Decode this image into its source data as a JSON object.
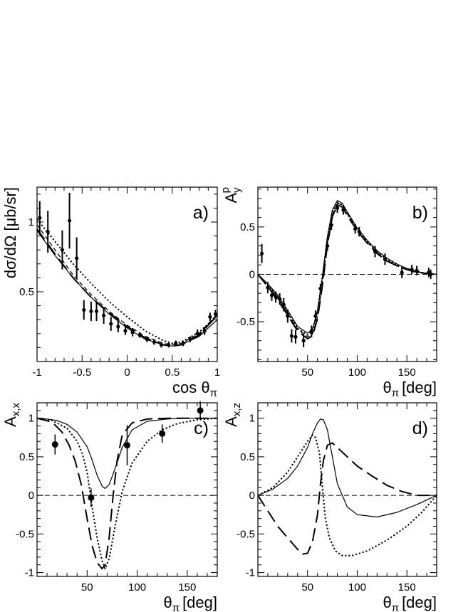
{
  "chart_data": [
    {
      "panel": "a)",
      "type": "line",
      "xlabel": "cos θ",
      "xlabel_sub": "π",
      "ylabel": "dσ/dΩ [μb/sr]",
      "xlim": [
        -1,
        1
      ],
      "ylim": [
        0.0,
        1.25
      ],
      "xticks": [
        -1,
        -0.5,
        0,
        0.5,
        1
      ],
      "xtick_labels": [
        "-1",
        "-0.5",
        "0",
        "0.5",
        "1"
      ],
      "yticks": [
        0.5,
        1
      ],
      "ytick_labels": [
        "0.5",
        "1"
      ],
      "zero_line": false,
      "points": [
        {
          "x": -0.97,
          "y": 1.03,
          "err": 0.12
        },
        {
          "x": -0.88,
          "y": 0.93,
          "err": 0.15
        },
        {
          "x": -0.72,
          "y": 0.8,
          "err": 0.14
        },
        {
          "x": -0.64,
          "y": 1.01,
          "err": 0.2
        },
        {
          "x": -0.56,
          "y": 0.74,
          "err": 0.15
        },
        {
          "x": -0.48,
          "y": 0.37,
          "err": 0.07
        },
        {
          "x": -0.4,
          "y": 0.36,
          "err": 0.07
        },
        {
          "x": -0.34,
          "y": 0.36,
          "err": 0.07
        },
        {
          "x": -0.26,
          "y": 0.33,
          "err": 0.06
        },
        {
          "x": -0.18,
          "y": 0.27,
          "err": 0.05
        },
        {
          "x": -0.1,
          "y": 0.25,
          "err": 0.04
        },
        {
          "x": -0.02,
          "y": 0.22,
          "err": 0.03
        },
        {
          "x": 0.06,
          "y": 0.21,
          "err": 0.03
        },
        {
          "x": 0.14,
          "y": 0.19,
          "err": 0.02
        },
        {
          "x": 0.22,
          "y": 0.16,
          "err": 0.02
        },
        {
          "x": 0.3,
          "y": 0.14,
          "err": 0.02
        },
        {
          "x": 0.38,
          "y": 0.12,
          "err": 0.02
        },
        {
          "x": 0.46,
          "y": 0.12,
          "err": 0.02
        },
        {
          "x": 0.54,
          "y": 0.13,
          "err": 0.02
        },
        {
          "x": 0.62,
          "y": 0.13,
          "err": 0.02
        },
        {
          "x": 0.7,
          "y": 0.16,
          "err": 0.02
        },
        {
          "x": 0.78,
          "y": 0.2,
          "err": 0.03
        },
        {
          "x": 0.86,
          "y": 0.22,
          "err": 0.03
        },
        {
          "x": 0.92,
          "y": 0.32,
          "err": 0.03
        },
        {
          "x": 0.98,
          "y": 0.34,
          "err": 0.03
        }
      ],
      "series": [
        {
          "style": "solid",
          "x": [
            -1,
            -0.8,
            -0.6,
            -0.4,
            -0.2,
            0,
            0.2,
            0.4,
            0.5,
            0.6,
            0.8,
            1
          ],
          "y": [
            0.94,
            0.76,
            0.6,
            0.46,
            0.34,
            0.24,
            0.16,
            0.12,
            0.11,
            0.12,
            0.18,
            0.3
          ]
        },
        {
          "style": "dashed",
          "x": [
            -1,
            -0.8,
            -0.6,
            -0.4,
            -0.2,
            0,
            0.2,
            0.4,
            0.5,
            0.6,
            0.8,
            1
          ],
          "y": [
            0.98,
            0.8,
            0.62,
            0.48,
            0.36,
            0.26,
            0.18,
            0.13,
            0.12,
            0.13,
            0.2,
            0.34
          ]
        },
        {
          "style": "dotted",
          "x": [
            -1,
            -0.8,
            -0.6,
            -0.4,
            -0.2,
            0,
            0.2,
            0.4,
            0.5,
            0.6,
            0.8,
            1
          ],
          "y": [
            1.02,
            0.86,
            0.7,
            0.56,
            0.43,
            0.32,
            0.22,
            0.15,
            0.13,
            0.14,
            0.21,
            0.33
          ]
        },
        {
          "style": "longdash",
          "x": [
            -1,
            -0.8,
            -0.6,
            -0.4,
            -0.2,
            0,
            0.2,
            0.4,
            0.5,
            0.6,
            0.8,
            1
          ],
          "y": [
            0.95,
            0.77,
            0.6,
            0.46,
            0.35,
            0.25,
            0.17,
            0.12,
            0.11,
            0.12,
            0.19,
            0.33
          ]
        }
      ]
    },
    {
      "panel": "b)",
      "type": "line",
      "xlabel": "θ",
      "xlabel_sub": "π",
      "xlabel_unit": "[deg]",
      "ylabel": "A",
      "ylabel_sub": "y",
      "ylabel_sup": "p",
      "xlim": [
        0,
        180
      ],
      "ylim": [
        -0.92,
        0.92
      ],
      "xticks": [
        50,
        100,
        150
      ],
      "xtick_labels": [
        "50",
        "100",
        "150"
      ],
      "yticks": [
        -0.5,
        0,
        0.5
      ],
      "ytick_labels": [
        "-0.5",
        "0",
        "0.5"
      ],
      "zero_line": true,
      "points": [
        {
          "x": 4,
          "y": 0.22,
          "err": 0.1
        },
        {
          "x": 10,
          "y": -0.14,
          "err": 0.06
        },
        {
          "x": 14,
          "y": -0.22,
          "err": 0.06
        },
        {
          "x": 18,
          "y": -0.24,
          "err": 0.06
        },
        {
          "x": 22,
          "y": -0.26,
          "err": 0.06
        },
        {
          "x": 26,
          "y": -0.32,
          "err": 0.07
        },
        {
          "x": 30,
          "y": -0.44,
          "err": 0.07
        },
        {
          "x": 34,
          "y": -0.65,
          "err": 0.07
        },
        {
          "x": 38,
          "y": -0.66,
          "err": 0.07
        },
        {
          "x": 46,
          "y": -0.7,
          "err": 0.07
        },
        {
          "x": 54,
          "y": -0.6,
          "err": 0.06
        },
        {
          "x": 58,
          "y": -0.44,
          "err": 0.06
        },
        {
          "x": 63,
          "y": -0.15,
          "err": 0.05
        },
        {
          "x": 70,
          "y": 0.3,
          "err": 0.05
        },
        {
          "x": 74,
          "y": 0.52,
          "err": 0.05
        },
        {
          "x": 80,
          "y": 0.7,
          "err": 0.05
        },
        {
          "x": 86,
          "y": 0.68,
          "err": 0.05
        },
        {
          "x": 98,
          "y": 0.48,
          "err": 0.05
        },
        {
          "x": 102,
          "y": 0.45,
          "err": 0.05
        },
        {
          "x": 118,
          "y": 0.24,
          "err": 0.06
        },
        {
          "x": 128,
          "y": 0.16,
          "err": 0.06
        },
        {
          "x": 145,
          "y": 0.02,
          "err": 0.06
        },
        {
          "x": 155,
          "y": 0.05,
          "err": 0.05
        },
        {
          "x": 160,
          "y": 0.04,
          "err": 0.05
        },
        {
          "x": 172,
          "y": 0.02,
          "err": 0.05
        },
        {
          "x": 174,
          "y": 0.0,
          "err": 0.05
        }
      ],
      "series": [
        {
          "style": "solid",
          "x": [
            0,
            10,
            20,
            30,
            40,
            50,
            55,
            60,
            65,
            70,
            75,
            80,
            85,
            90,
            100,
            110,
            120,
            130,
            140,
            150,
            160,
            170,
            180
          ],
          "y": [
            0,
            -0.1,
            -0.22,
            -0.38,
            -0.55,
            -0.62,
            -0.58,
            -0.38,
            -0.02,
            0.4,
            0.68,
            0.78,
            0.75,
            0.66,
            0.49,
            0.36,
            0.25,
            0.17,
            0.11,
            0.06,
            0.03,
            0.01,
            0
          ]
        },
        {
          "style": "dashed",
          "x": [
            0,
            10,
            20,
            30,
            40,
            50,
            55,
            60,
            65,
            70,
            75,
            80,
            85,
            90,
            100,
            110,
            120,
            130,
            140,
            150,
            160,
            170,
            180
          ],
          "y": [
            0,
            -0.12,
            -0.25,
            -0.41,
            -0.58,
            -0.66,
            -0.63,
            -0.45,
            -0.1,
            0.33,
            0.63,
            0.75,
            0.73,
            0.64,
            0.47,
            0.34,
            0.23,
            0.15,
            0.09,
            0.05,
            0.02,
            0.01,
            0
          ]
        },
        {
          "style": "dotted",
          "x": [
            0,
            10,
            20,
            30,
            40,
            50,
            55,
            60,
            65,
            70,
            75,
            80,
            85,
            90,
            100,
            110,
            120,
            130,
            140,
            150,
            160,
            170,
            180
          ],
          "y": [
            0,
            -0.11,
            -0.24,
            -0.4,
            -0.57,
            -0.64,
            -0.6,
            -0.4,
            -0.04,
            0.38,
            0.66,
            0.76,
            0.73,
            0.64,
            0.48,
            0.35,
            0.24,
            0.16,
            0.1,
            0.06,
            0.03,
            0.01,
            0
          ]
        },
        {
          "style": "longdash",
          "x": [
            0,
            10,
            20,
            30,
            40,
            50,
            55,
            60,
            65,
            70,
            75,
            80,
            85,
            90,
            100,
            110,
            120,
            130,
            140,
            150,
            160,
            170,
            180
          ],
          "y": [
            0,
            -0.13,
            -0.27,
            -0.43,
            -0.6,
            -0.68,
            -0.65,
            -0.47,
            -0.12,
            0.31,
            0.61,
            0.73,
            0.71,
            0.62,
            0.46,
            0.33,
            0.22,
            0.14,
            0.09,
            0.05,
            0.02,
            0.01,
            0
          ]
        }
      ]
    },
    {
      "panel": "c)",
      "type": "line",
      "xlabel": "θ",
      "xlabel_sub": "π",
      "xlabel_unit": "[deg]",
      "ylabel": "A",
      "ylabel_sub": "x,x",
      "xlim": [
        0,
        180
      ],
      "ylim": [
        -1.05,
        1.2
      ],
      "xticks": [
        50,
        100,
        150
      ],
      "xtick_labels": [
        "50",
        "100",
        "150"
      ],
      "yticks": [
        -1,
        -0.5,
        0,
        0.5,
        1
      ],
      "ytick_labels": [
        "-1",
        "-0.5",
        "0",
        "0.5",
        "1"
      ],
      "zero_line": true,
      "points": [
        {
          "x": 18,
          "y": 0.66,
          "err": 0.13
        },
        {
          "x": 54,
          "y": -0.03,
          "err": 0.12
        },
        {
          "x": 90,
          "y": 0.65,
          "err": 0.26
        },
        {
          "x": 125,
          "y": 0.8,
          "err": 0.12
        },
        {
          "x": 163,
          "y": 1.1,
          "err": 0.12
        }
      ],
      "series": [
        {
          "style": "solid",
          "x": [
            0,
            10,
            20,
            30,
            40,
            50,
            55,
            60,
            65,
            68,
            72,
            78,
            85,
            95,
            110,
            130,
            150,
            180
          ],
          "y": [
            1.0,
            0.99,
            0.97,
            0.92,
            0.82,
            0.63,
            0.46,
            0.26,
            0.12,
            0.09,
            0.14,
            0.35,
            0.62,
            0.85,
            0.96,
            0.99,
            1.0,
            1.0
          ]
        },
        {
          "style": "dotted",
          "x": [
            0,
            15,
            30,
            40,
            45,
            50,
            55,
            60,
            65,
            68,
            72,
            78,
            85,
            95,
            110,
            125,
            140,
            160,
            180
          ],
          "y": [
            1.0,
            0.97,
            0.87,
            0.7,
            0.55,
            0.3,
            -0.15,
            -0.55,
            -0.85,
            -0.95,
            -0.82,
            -0.4,
            0.05,
            0.42,
            0.7,
            0.85,
            0.93,
            0.98,
            1.0
          ]
        },
        {
          "style": "longdash",
          "x": [
            0,
            15,
            25,
            32,
            38,
            44,
            50,
            55,
            60,
            65,
            68,
            72,
            76,
            80,
            85,
            95,
            110,
            130,
            150,
            180
          ],
          "y": [
            1.0,
            0.95,
            0.82,
            0.65,
            0.45,
            0.15,
            -0.3,
            -0.65,
            -0.87,
            -0.95,
            -0.9,
            -0.55,
            0.0,
            0.45,
            0.78,
            0.94,
            0.99,
            1.0,
            1.0,
            1.0
          ]
        }
      ]
    },
    {
      "panel": "d)",
      "type": "line",
      "xlabel": "θ",
      "xlabel_sub": "π",
      "xlabel_unit": "[deg]",
      "ylabel": "A",
      "ylabel_sub": "x,z",
      "xlim": [
        0,
        180
      ],
      "ylim": [
        -1.05,
        1.2
      ],
      "xticks": [
        50,
        100,
        150
      ],
      "xtick_labels": [
        "50",
        "100",
        "150"
      ],
      "yticks": [
        -1,
        -0.5,
        0,
        0.5,
        1
      ],
      "ytick_labels": [
        "-1",
        "-0.5",
        "0",
        "0.5",
        "1"
      ],
      "zero_line": true,
      "points": [],
      "series": [
        {
          "style": "solid",
          "x": [
            0,
            15,
            30,
            40,
            50,
            55,
            60,
            63,
            66,
            70,
            75,
            80,
            90,
            100,
            120,
            140,
            160,
            180
          ],
          "y": [
            0,
            0.08,
            0.22,
            0.38,
            0.62,
            0.8,
            0.94,
            0.99,
            0.98,
            0.85,
            0.5,
            0.15,
            -0.15,
            -0.25,
            -0.28,
            -0.22,
            -0.12,
            0
          ]
        },
        {
          "style": "dotted",
          "x": [
            0,
            15,
            30,
            40,
            50,
            55,
            58,
            62,
            65,
            68,
            72,
            78,
            85,
            95,
            110,
            130,
            150,
            165,
            180
          ],
          "y": [
            0,
            0.1,
            0.3,
            0.5,
            0.7,
            0.78,
            0.75,
            0.55,
            0.1,
            -0.3,
            -0.55,
            -0.72,
            -0.78,
            -0.78,
            -0.72,
            -0.58,
            -0.4,
            -0.22,
            0
          ]
        },
        {
          "style": "longdash",
          "x": [
            0,
            10,
            20,
            30,
            40,
            45,
            50,
            55,
            60,
            63,
            66,
            70,
            75,
            80,
            90,
            100,
            115,
            130,
            145,
            160,
            170,
            180
          ],
          "y": [
            0,
            -0.2,
            -0.4,
            -0.55,
            -0.7,
            -0.76,
            -0.75,
            -0.6,
            -0.25,
            0.15,
            0.45,
            0.65,
            0.68,
            0.62,
            0.5,
            0.38,
            0.25,
            0.13,
            0.05,
            0.0,
            0.0,
            0.0
          ]
        }
      ]
    }
  ]
}
